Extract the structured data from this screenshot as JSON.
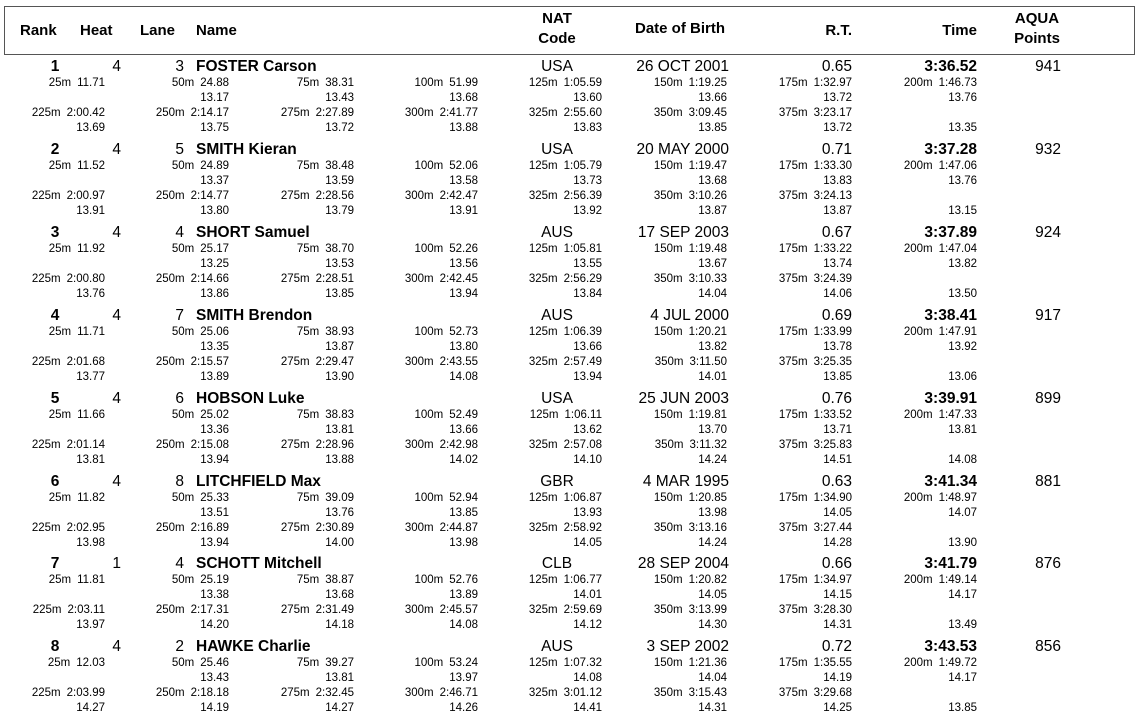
{
  "header": {
    "rank": "Rank",
    "heat": "Heat",
    "lane": "Lane",
    "name": "Name",
    "nat_line1": "NAT",
    "nat_line2": "Code",
    "dob": "Date of Birth",
    "rt": "R.T.",
    "time": "Time",
    "points_line1": "AQUA",
    "points_line2": "Points"
  },
  "swimmers": [
    {
      "rank": "1",
      "heat": "4",
      "lane": "3",
      "name": "FOSTER Carson",
      "nat": "USA",
      "dob": "26 OCT 2001",
      "rt": "0.65",
      "time": "3:36.52",
      "points": "941",
      "splits": [
        [
          "25m",
          "11.71",
          ""
        ],
        [
          "50m",
          "24.88",
          "13.17"
        ],
        [
          "75m",
          "38.31",
          "13.43"
        ],
        [
          "100m",
          "51.99",
          "13.68"
        ],
        [
          "125m",
          "1:05.59",
          "13.60"
        ],
        [
          "150m",
          "1:19.25",
          "13.66"
        ],
        [
          "175m",
          "1:32.97",
          "13.72"
        ],
        [
          "200m",
          "1:46.73",
          "13.76"
        ],
        [
          "225m",
          "2:00.42",
          "13.69"
        ],
        [
          "250m",
          "2:14.17",
          "13.75"
        ],
        [
          "275m",
          "2:27.89",
          "13.72"
        ],
        [
          "300m",
          "2:41.77",
          "13.88"
        ],
        [
          "325m",
          "2:55.60",
          "13.83"
        ],
        [
          "350m",
          "3:09.45",
          "13.85"
        ],
        [
          "375m",
          "3:23.17",
          "13.72"
        ]
      ],
      "final_lap": "13.35"
    },
    {
      "rank": "2",
      "heat": "4",
      "lane": "5",
      "name": "SMITH Kieran",
      "nat": "USA",
      "dob": "20 MAY 2000",
      "rt": "0.71",
      "time": "3:37.28",
      "points": "932",
      "splits": [
        [
          "25m",
          "11.52",
          ""
        ],
        [
          "50m",
          "24.89",
          "13.37"
        ],
        [
          "75m",
          "38.48",
          "13.59"
        ],
        [
          "100m",
          "52.06",
          "13.58"
        ],
        [
          "125m",
          "1:05.79",
          "13.73"
        ],
        [
          "150m",
          "1:19.47",
          "13.68"
        ],
        [
          "175m",
          "1:33.30",
          "13.83"
        ],
        [
          "200m",
          "1:47.06",
          "13.76"
        ],
        [
          "225m",
          "2:00.97",
          "13.91"
        ],
        [
          "250m",
          "2:14.77",
          "13.80"
        ],
        [
          "275m",
          "2:28.56",
          "13.79"
        ],
        [
          "300m",
          "2:42.47",
          "13.91"
        ],
        [
          "325m",
          "2:56.39",
          "13.92"
        ],
        [
          "350m",
          "3:10.26",
          "13.87"
        ],
        [
          "375m",
          "3:24.13",
          "13.87"
        ]
      ],
      "final_lap": "13.15"
    },
    {
      "rank": "3",
      "heat": "4",
      "lane": "4",
      "name": "SHORT Samuel",
      "nat": "AUS",
      "dob": "17 SEP 2003",
      "rt": "0.67",
      "time": "3:37.89",
      "points": "924",
      "splits": [
        [
          "25m",
          "11.92",
          ""
        ],
        [
          "50m",
          "25.17",
          "13.25"
        ],
        [
          "75m",
          "38.70",
          "13.53"
        ],
        [
          "100m",
          "52.26",
          "13.56"
        ],
        [
          "125m",
          "1:05.81",
          "13.55"
        ],
        [
          "150m",
          "1:19.48",
          "13.67"
        ],
        [
          "175m",
          "1:33.22",
          "13.74"
        ],
        [
          "200m",
          "1:47.04",
          "13.82"
        ],
        [
          "225m",
          "2:00.80",
          "13.76"
        ],
        [
          "250m",
          "2:14.66",
          "13.86"
        ],
        [
          "275m",
          "2:28.51",
          "13.85"
        ],
        [
          "300m",
          "2:42.45",
          "13.94"
        ],
        [
          "325m",
          "2:56.29",
          "13.84"
        ],
        [
          "350m",
          "3:10.33",
          "14.04"
        ],
        [
          "375m",
          "3:24.39",
          "14.06"
        ]
      ],
      "final_lap": "13.50"
    },
    {
      "rank": "4",
      "heat": "4",
      "lane": "7",
      "name": "SMITH Brendon",
      "nat": "AUS",
      "dob": "4 JUL 2000",
      "rt": "0.69",
      "time": "3:38.41",
      "points": "917",
      "splits": [
        [
          "25m",
          "11.71",
          ""
        ],
        [
          "50m",
          "25.06",
          "13.35"
        ],
        [
          "75m",
          "38.93",
          "13.87"
        ],
        [
          "100m",
          "52.73",
          "13.80"
        ],
        [
          "125m",
          "1:06.39",
          "13.66"
        ],
        [
          "150m",
          "1:20.21",
          "13.82"
        ],
        [
          "175m",
          "1:33.99",
          "13.78"
        ],
        [
          "200m",
          "1:47.91",
          "13.92"
        ],
        [
          "225m",
          "2:01.68",
          "13.77"
        ],
        [
          "250m",
          "2:15.57",
          "13.89"
        ],
        [
          "275m",
          "2:29.47",
          "13.90"
        ],
        [
          "300m",
          "2:43.55",
          "14.08"
        ],
        [
          "325m",
          "2:57.49",
          "13.94"
        ],
        [
          "350m",
          "3:11.50",
          "14.01"
        ],
        [
          "375m",
          "3:25.35",
          "13.85"
        ]
      ],
      "final_lap": "13.06"
    },
    {
      "rank": "5",
      "heat": "4",
      "lane": "6",
      "name": "HOBSON Luke",
      "nat": "USA",
      "dob": "25 JUN 2003",
      "rt": "0.76",
      "time": "3:39.91",
      "points": "899",
      "splits": [
        [
          "25m",
          "11.66",
          ""
        ],
        [
          "50m",
          "25.02",
          "13.36"
        ],
        [
          "75m",
          "38.83",
          "13.81"
        ],
        [
          "100m",
          "52.49",
          "13.66"
        ],
        [
          "125m",
          "1:06.11",
          "13.62"
        ],
        [
          "150m",
          "1:19.81",
          "13.70"
        ],
        [
          "175m",
          "1:33.52",
          "13.71"
        ],
        [
          "200m",
          "1:47.33",
          "13.81"
        ],
        [
          "225m",
          "2:01.14",
          "13.81"
        ],
        [
          "250m",
          "2:15.08",
          "13.94"
        ],
        [
          "275m",
          "2:28.96",
          "13.88"
        ],
        [
          "300m",
          "2:42.98",
          "14.02"
        ],
        [
          "325m",
          "2:57.08",
          "14.10"
        ],
        [
          "350m",
          "3:11.32",
          "14.24"
        ],
        [
          "375m",
          "3:25.83",
          "14.51"
        ]
      ],
      "final_lap": "14.08"
    },
    {
      "rank": "6",
      "heat": "4",
      "lane": "8",
      "name": "LITCHFIELD Max",
      "nat": "GBR",
      "dob": "4 MAR 1995",
      "rt": "0.63",
      "time": "3:41.34",
      "points": "881",
      "splits": [
        [
          "25m",
          "11.82",
          ""
        ],
        [
          "50m",
          "25.33",
          "13.51"
        ],
        [
          "75m",
          "39.09",
          "13.76"
        ],
        [
          "100m",
          "52.94",
          "13.85"
        ],
        [
          "125m",
          "1:06.87",
          "13.93"
        ],
        [
          "150m",
          "1:20.85",
          "13.98"
        ],
        [
          "175m",
          "1:34.90",
          "14.05"
        ],
        [
          "200m",
          "1:48.97",
          "14.07"
        ],
        [
          "225m",
          "2:02.95",
          "13.98"
        ],
        [
          "250m",
          "2:16.89",
          "13.94"
        ],
        [
          "275m",
          "2:30.89",
          "14.00"
        ],
        [
          "300m",
          "2:44.87",
          "13.98"
        ],
        [
          "325m",
          "2:58.92",
          "14.05"
        ],
        [
          "350m",
          "3:13.16",
          "14.24"
        ],
        [
          "375m",
          "3:27.44",
          "14.28"
        ]
      ],
      "final_lap": "13.90"
    },
    {
      "rank": "7",
      "heat": "1",
      "lane": "4",
      "name": "SCHOTT Mitchell",
      "nat": "CLB",
      "dob": "28 SEP 2004",
      "rt": "0.66",
      "time": "3:41.79",
      "points": "876",
      "splits": [
        [
          "25m",
          "11.81",
          ""
        ],
        [
          "50m",
          "25.19",
          "13.38"
        ],
        [
          "75m",
          "38.87",
          "13.68"
        ],
        [
          "100m",
          "52.76",
          "13.89"
        ],
        [
          "125m",
          "1:06.77",
          "14.01"
        ],
        [
          "150m",
          "1:20.82",
          "14.05"
        ],
        [
          "175m",
          "1:34.97",
          "14.15"
        ],
        [
          "200m",
          "1:49.14",
          "14.17"
        ],
        [
          "225m",
          "2:03.11",
          "13.97"
        ],
        [
          "250m",
          "2:17.31",
          "14.20"
        ],
        [
          "275m",
          "2:31.49",
          "14.18"
        ],
        [
          "300m",
          "2:45.57",
          "14.08"
        ],
        [
          "325m",
          "2:59.69",
          "14.12"
        ],
        [
          "350m",
          "3:13.99",
          "14.30"
        ],
        [
          "375m",
          "3:28.30",
          "14.31"
        ]
      ],
      "final_lap": "13.49"
    },
    {
      "rank": "8",
      "heat": "4",
      "lane": "2",
      "name": "HAWKE Charlie",
      "nat": "AUS",
      "dob": "3 SEP 2002",
      "rt": "0.72",
      "time": "3:43.53",
      "points": "856",
      "splits": [
        [
          "25m",
          "12.03",
          ""
        ],
        [
          "50m",
          "25.46",
          "13.43"
        ],
        [
          "75m",
          "39.27",
          "13.81"
        ],
        [
          "100m",
          "53.24",
          "13.97"
        ],
        [
          "125m",
          "1:07.32",
          "14.08"
        ],
        [
          "150m",
          "1:21.36",
          "14.04"
        ],
        [
          "175m",
          "1:35.55",
          "14.19"
        ],
        [
          "200m",
          "1:49.72",
          "14.17"
        ],
        [
          "225m",
          "2:03.99",
          "14.27"
        ],
        [
          "250m",
          "2:18.18",
          "14.19"
        ],
        [
          "275m",
          "2:32.45",
          "14.27"
        ],
        [
          "300m",
          "2:46.71",
          "14.26"
        ],
        [
          "325m",
          "3:01.12",
          "14.41"
        ],
        [
          "350m",
          "3:15.43",
          "14.31"
        ],
        [
          "375m",
          "3:29.68",
          "14.25"
        ]
      ],
      "final_lap": "13.85"
    }
  ]
}
